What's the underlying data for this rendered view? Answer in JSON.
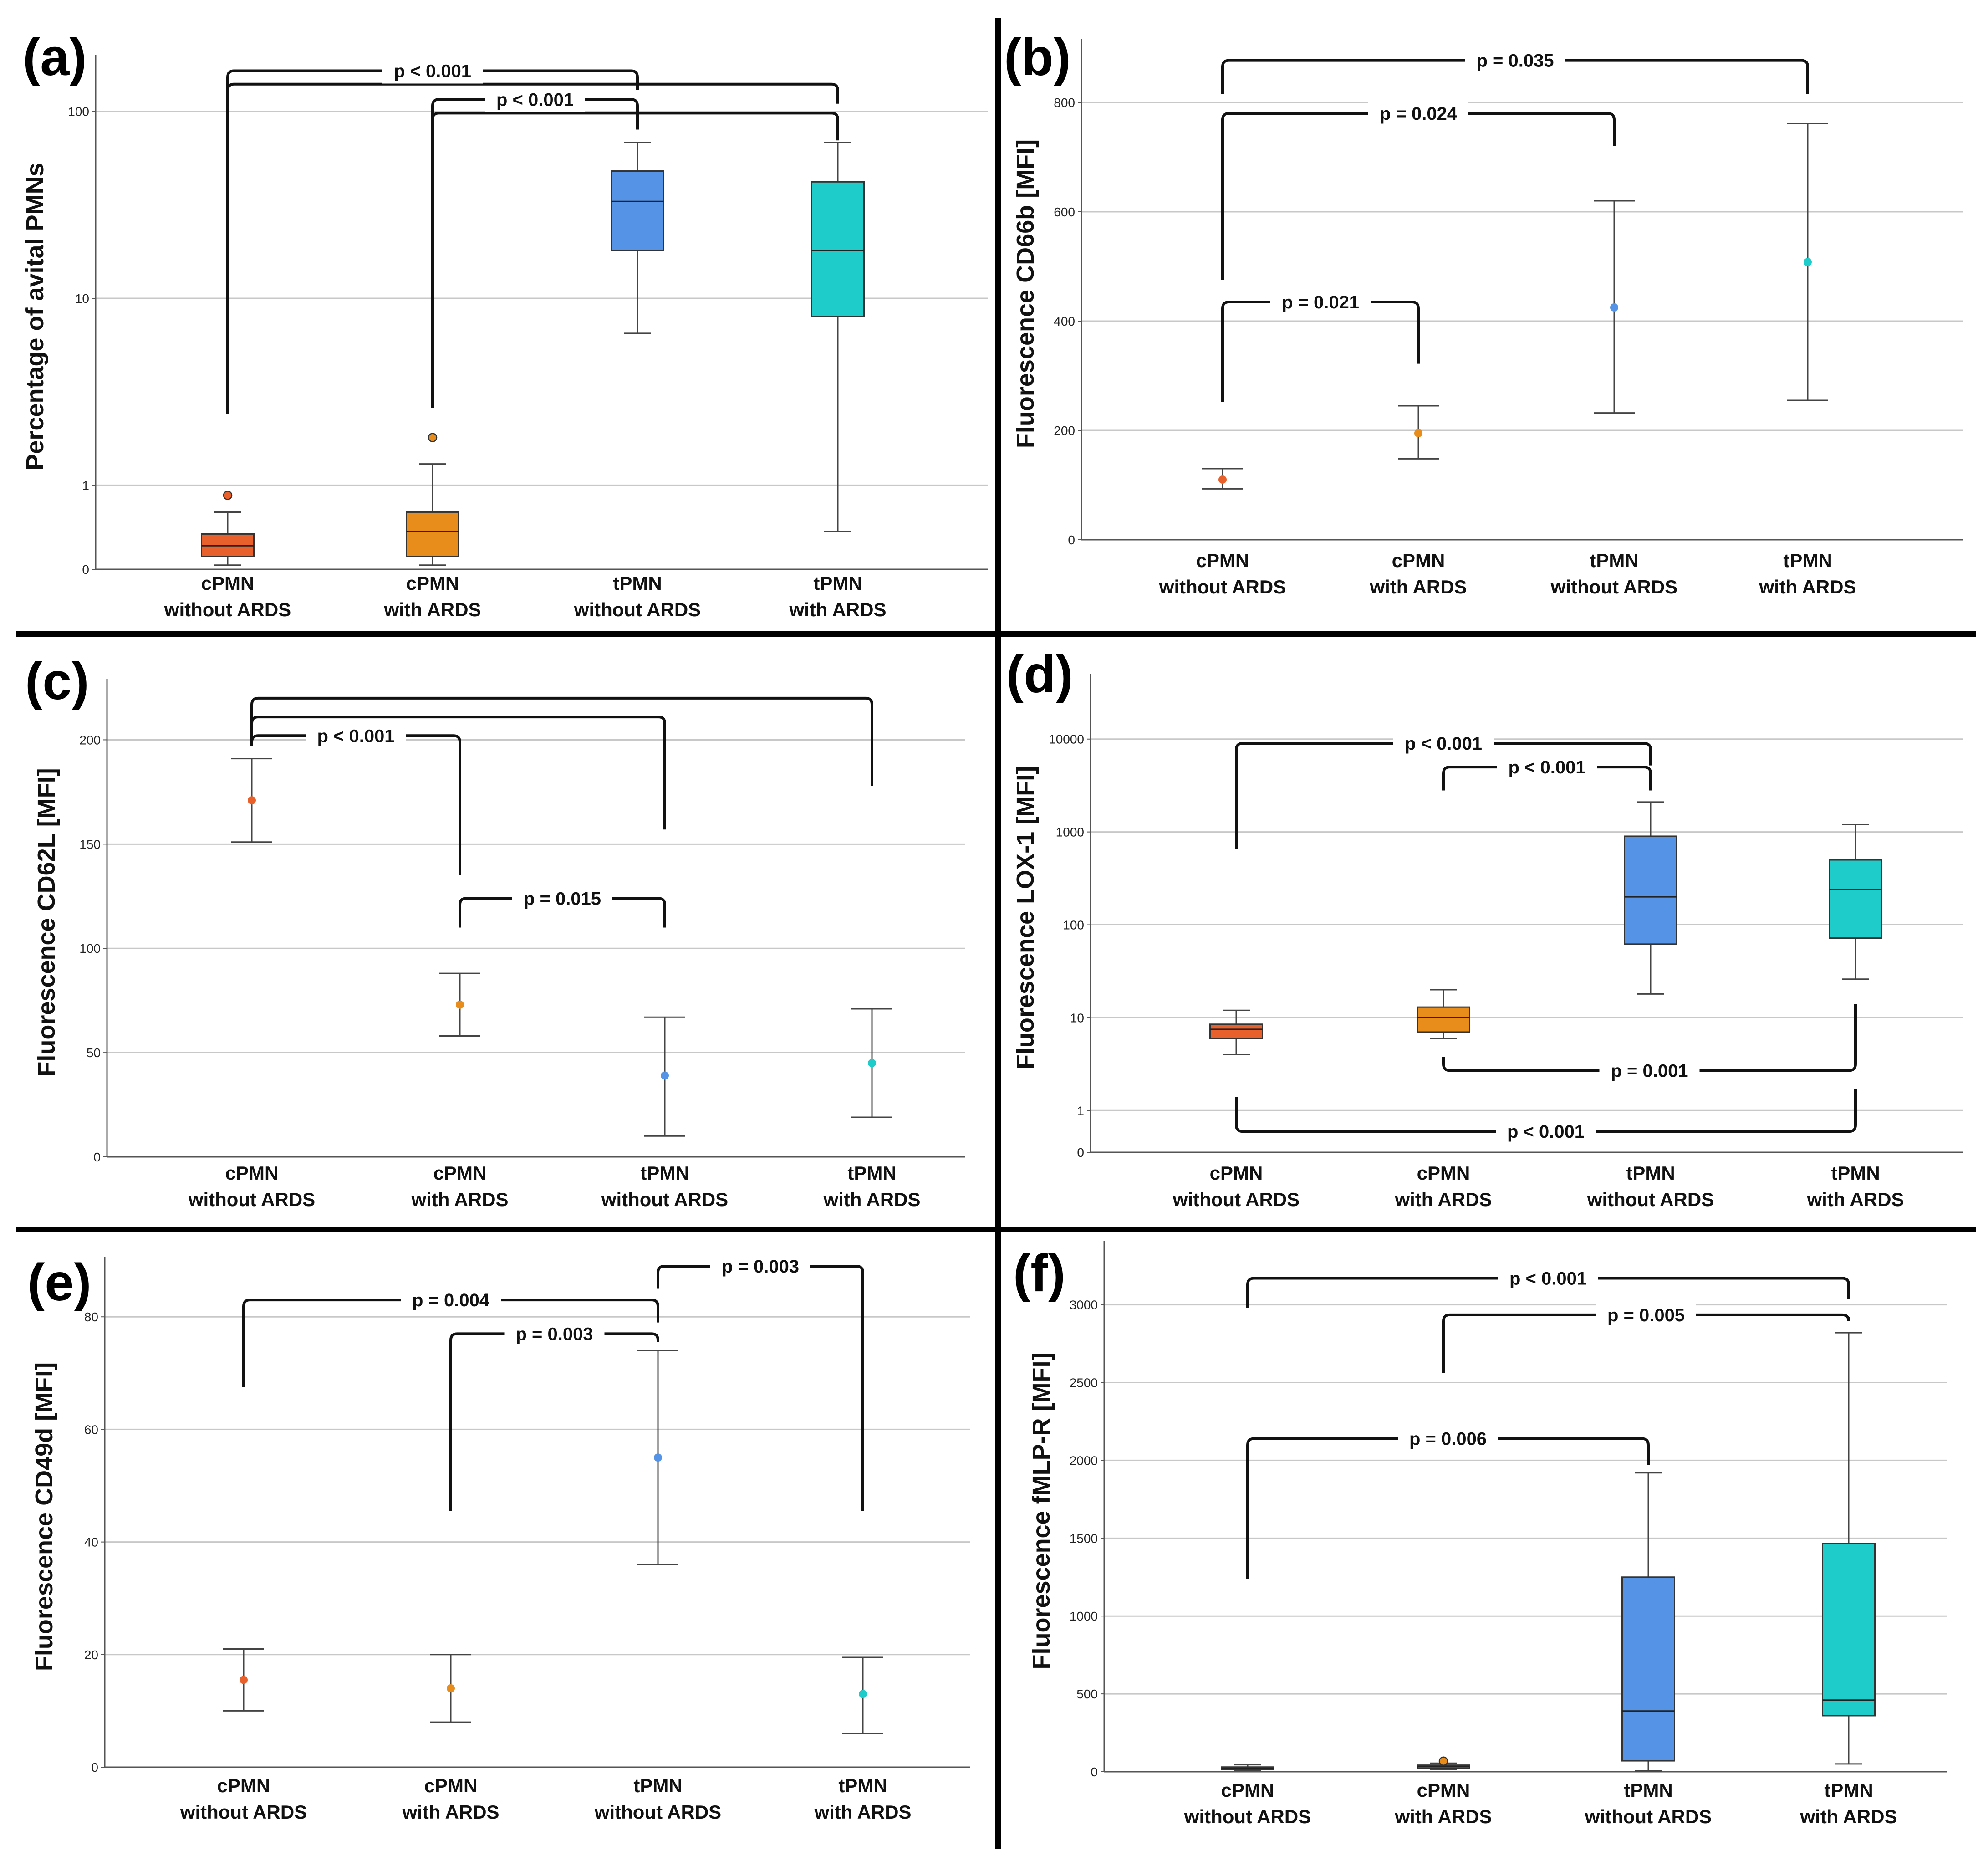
{
  "figure": {
    "divider_color": "#000000",
    "colors": {
      "cpmn_without": "#e8612c",
      "cpmn_with": "#e88c1c",
      "tpmn_without": "#5593e6",
      "tpmn_with": "#1ecdca"
    }
  },
  "chart_data": [
    {
      "panel": "(a)",
      "type": "box",
      "ylabel": "Percentage of avital PMNs",
      "yscale": "log",
      "ylim": [
        0,
        180
      ],
      "yticks": [
        0,
        1,
        10,
        100
      ],
      "ytick_labels": [
        "0",
        "1",
        "10",
        "100"
      ],
      "categories": [
        "cPMN\nwithout ARDS",
        "cPMN\nwith ARDS",
        "tPMN\nwithout ARDS",
        "tPMN\nwith ARDS"
      ],
      "boxes": [
        {
          "min": 0.05,
          "q1": 0.15,
          "median": 0.28,
          "q3": 0.42,
          "max": 0.68,
          "outliers": [
            0.88
          ]
        },
        {
          "min": 0.05,
          "q1": 0.15,
          "median": 0.45,
          "q3": 0.68,
          "max": 1.3,
          "outliers": [
            1.8
          ]
        },
        {
          "min": 6.5,
          "q1": 18,
          "median": 33,
          "q3": 48,
          "max": 68,
          "outliers": []
        },
        {
          "min": 0.45,
          "q1": 8,
          "median": 18,
          "q3": 42,
          "max": 68,
          "outliers": []
        }
      ],
      "brackets": [
        {
          "label": "p < 0.001",
          "from": 0,
          "to": [
            2,
            3
          ],
          "from_y": 2.4,
          "to_y": [
            130,
            110
          ],
          "levels": [
            165,
            140
          ]
        },
        {
          "label": "p < 0.001",
          "from": 1,
          "to": [
            2,
            3
          ],
          "from_y": 2.6,
          "to_y": [
            80,
            70
          ],
          "levels": [
            116,
            98
          ]
        }
      ]
    },
    {
      "panel": "(b)",
      "type": "errorbar",
      "ylabel": "Fluorescence CD66b [MFI]",
      "ylim": [
        0,
        900
      ],
      "yticks": [
        0,
        200,
        400,
        600,
        800
      ],
      "ytick_labels": [
        "0",
        "200",
        "400",
        "600",
        "800"
      ],
      "categories": [
        "cPMN\nwithout ARDS",
        "cPMN\nwith ARDS",
        "tPMN\nwithout ARDS",
        "tPMN\nwith ARDS"
      ],
      "points": [
        {
          "mean": 110,
          "lower": 93,
          "upper": 130
        },
        {
          "mean": 195,
          "lower": 148,
          "upper": 245
        },
        {
          "mean": 425,
          "lower": 232,
          "upper": 620
        },
        {
          "mean": 508,
          "lower": 255,
          "upper": 762
        }
      ],
      "brackets": [
        {
          "label": "p = 0.035",
          "from": 0,
          "to": [
            3
          ],
          "from_y": 815,
          "to_y": [
            815
          ],
          "levels": [
            877
          ]
        },
        {
          "label": "p = 0.024",
          "from": 0,
          "to": [
            2
          ],
          "from_y": 475,
          "to_y": [
            720
          ],
          "levels": [
            780
          ]
        },
        {
          "label": "p = 0.021",
          "from": 0,
          "to": [
            1
          ],
          "from_y": 252,
          "to_y": [
            322
          ],
          "levels": [
            435
          ]
        }
      ]
    },
    {
      "panel": "(c)",
      "type": "errorbar",
      "ylabel": "Fluorescence CD62L [MFI]",
      "ylim": [
        0,
        225
      ],
      "yticks": [
        0,
        50,
        100,
        150,
        200
      ],
      "ytick_labels": [
        "0",
        "50",
        "100",
        "150",
        "200"
      ],
      "categories": [
        "cPMN\nwithout ARDS",
        "cPMN\nwith ARDS",
        "tPMN\nwithout ARDS",
        "tPMN\nwith ARDS"
      ],
      "points": [
        {
          "mean": 171,
          "lower": 151,
          "upper": 191
        },
        {
          "mean": 73,
          "lower": 58,
          "upper": 88
        },
        {
          "mean": 39,
          "lower": 10,
          "upper": 67
        },
        {
          "mean": 45,
          "lower": 19,
          "upper": 71
        }
      ],
      "brackets": [
        {
          "label": "p < 0.001",
          "from": 0,
          "to": [
            1,
            2,
            3
          ],
          "from_y": 197,
          "to_y": [
            135,
            157,
            178
          ],
          "levels": [
            202,
            211,
            220
          ]
        },
        {
          "label": "p = 0.015",
          "from": 1,
          "to": [
            2
          ],
          "from_y": 110,
          "to_y": [
            110
          ],
          "levels": [
            124
          ]
        }
      ]
    },
    {
      "panel": "(d)",
      "type": "box",
      "ylabel": "Fluorescence LOX-1 [MFI]",
      "yscale": "log",
      "ylim": [
        0,
        40000
      ],
      "yticks": [
        0,
        1,
        10,
        100,
        1000,
        10000
      ],
      "ytick_labels": [
        "0",
        "1",
        "10",
        "100",
        "1000",
        "10000"
      ],
      "categories": [
        "cPMN\nwithout ARDS",
        "cPMN\nwith ARDS",
        "tPMN\nwithout ARDS",
        "tPMN\nwith ARDS"
      ],
      "boxes": [
        {
          "min": 4,
          "q1": 6,
          "median": 7.5,
          "q3": 8.5,
          "max": 12,
          "outliers": []
        },
        {
          "min": 6,
          "q1": 7,
          "median": 10,
          "q3": 13,
          "max": 20,
          "outliers": []
        },
        {
          "min": 18,
          "q1": 62,
          "median": 200,
          "q3": 900,
          "max": 2100,
          "outliers": []
        },
        {
          "min": 26,
          "q1": 72,
          "median": 240,
          "q3": 500,
          "max": 1200,
          "outliers": []
        }
      ],
      "brackets": [
        {
          "label": "p < 0.001",
          "from": 0,
          "to": [
            2
          ],
          "from_y": 650,
          "to_y": [
            5200
          ],
          "levels": [
            9000
          ]
        },
        {
          "label": "p < 0.001",
          "from": 1,
          "to": [
            2
          ],
          "from_y": 2800,
          "to_y": [
            2800
          ],
          "levels": [
            5000
          ]
        },
        {
          "label": "p = 0.001",
          "from": 1,
          "to": [
            3
          ],
          "from_y": 3.8,
          "to_y": [
            14
          ],
          "levels": [
            2.7
          ],
          "below": true
        },
        {
          "label": "p < 0.001",
          "from": 0,
          "to": [
            3
          ],
          "from_y": 1.4,
          "to_y": [
            1.7
          ],
          "levels": [
            0.5
          ],
          "below": true
        }
      ]
    },
    {
      "panel": "(e)",
      "type": "errorbar",
      "ylabel": "Fluorescence CD49d [MFI]",
      "ylim": [
        0,
        89
      ],
      "yticks": [
        0,
        20,
        40,
        60,
        80
      ],
      "ytick_labels": [
        "0",
        "20",
        "40",
        "60",
        "80"
      ],
      "categories": [
        "cPMN\nwithout ARDS",
        "cPMN\nwith ARDS",
        "tPMN\nwithout ARDS",
        "tPMN\nwith ARDS"
      ],
      "points": [
        {
          "mean": 15.5,
          "lower": 10,
          "upper": 21
        },
        {
          "mean": 14,
          "lower": 8,
          "upper": 20
        },
        {
          "mean": 55,
          "lower": 36,
          "upper": 74
        },
        {
          "mean": 13,
          "lower": 6,
          "upper": 19.5
        }
      ],
      "brackets": [
        {
          "label": "p = 0.004",
          "from": 0,
          "to": [
            2
          ],
          "from_y": 67.5,
          "to_y": [
            79
          ],
          "levels": [
            83
          ]
        },
        {
          "label": "p = 0.003",
          "from": 1,
          "to": [
            2
          ],
          "from_y": 45.5,
          "to_y": [
            75.5
          ],
          "levels": [
            77
          ]
        },
        {
          "label": "p = 0.003",
          "from": 2,
          "to": [
            3
          ],
          "from_y": 85,
          "to_y": [
            45.5
          ],
          "levels": [
            89
          ]
        }
      ]
    },
    {
      "panel": "(f)",
      "type": "box",
      "ylabel": "Fluorescence fMLP-R [MFI]",
      "ylim": [
        0,
        3350
      ],
      "yticks": [
        0,
        500,
        1000,
        1500,
        2000,
        2500,
        3000
      ],
      "ytick_labels": [
        "0",
        "500",
        "1000",
        "1500",
        "2000",
        "2500",
        "3000"
      ],
      "categories": [
        "cPMN\nwithout ARDS",
        "cPMN\nwith ARDS",
        "tPMN\nwithout ARDS",
        "tPMN\nwith ARDS"
      ],
      "boxes": [
        {
          "min": 10,
          "q1": 15,
          "median": 22,
          "q3": 30,
          "max": 45,
          "outliers": []
        },
        {
          "min": 15,
          "q1": 22,
          "median": 32,
          "q3": 42,
          "max": 55,
          "outliers": [
            68
          ]
        },
        {
          "min": 5,
          "q1": 70,
          "median": 390,
          "q3": 1250,
          "max": 1920,
          "outliers": []
        },
        {
          "min": 50,
          "q1": 360,
          "median": 460,
          "q3": 1465,
          "max": 2820,
          "outliers": []
        }
      ],
      "brackets": [
        {
          "label": "p < 0.001",
          "from": 0,
          "to": [
            3
          ],
          "from_y": 2980,
          "to_y": [
            3040
          ],
          "levels": [
            3170
          ]
        },
        {
          "label": "p = 0.005",
          "from": 1,
          "to": [
            3
          ],
          "from_y": 2560,
          "to_y": [
            2920
          ],
          "levels": [
            2935
          ]
        },
        {
          "label": "p = 0.006",
          "from": 0,
          "to": [
            2
          ],
          "from_y": 1240,
          "to_y": [
            1970
          ],
          "levels": [
            2140
          ]
        }
      ]
    }
  ]
}
